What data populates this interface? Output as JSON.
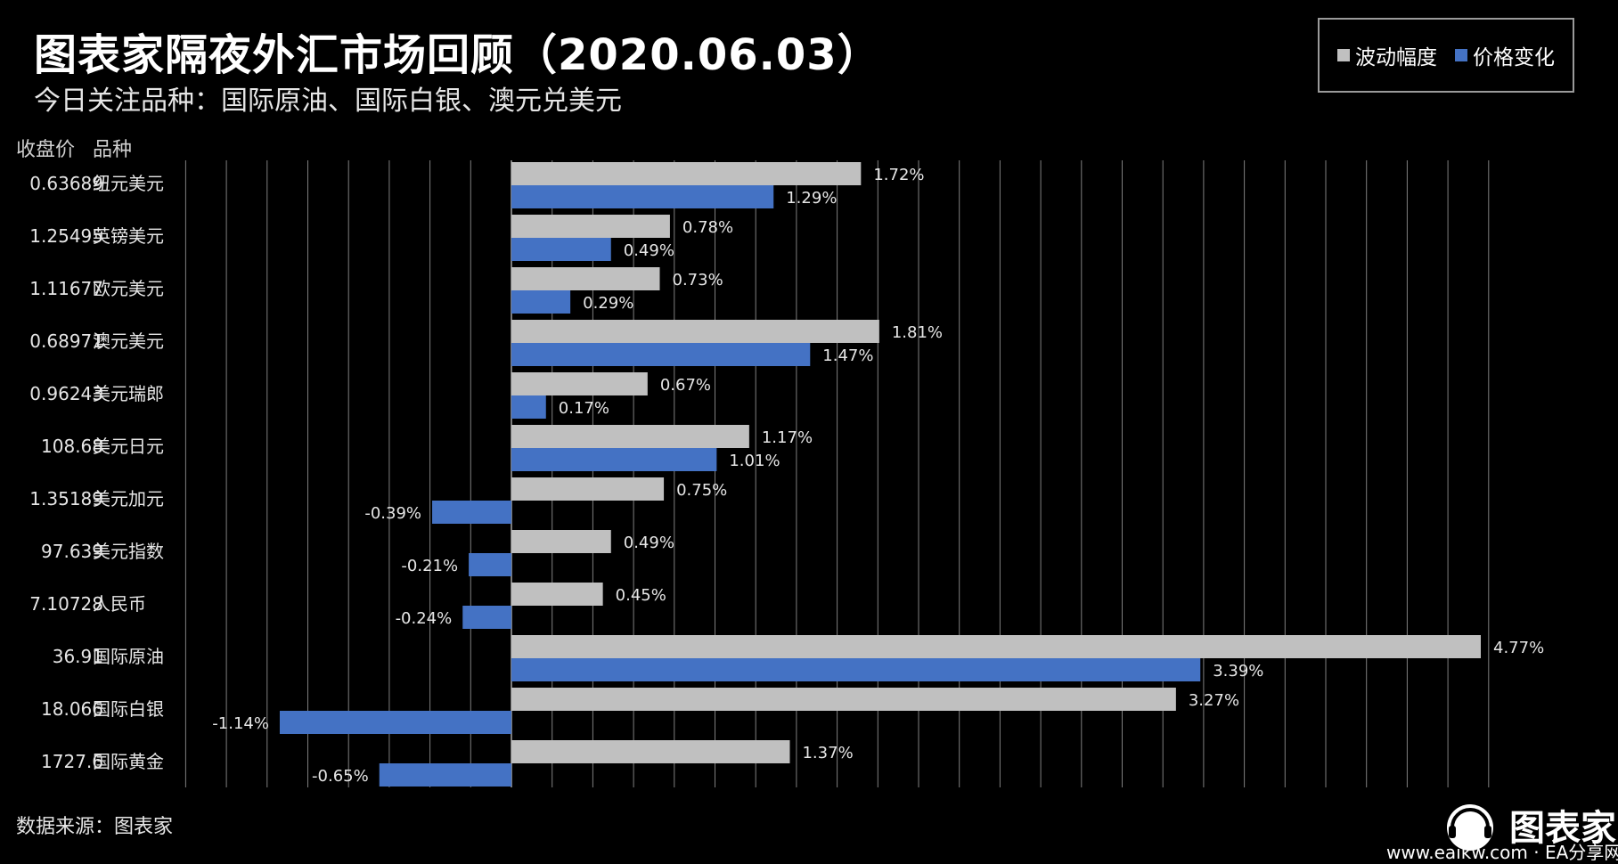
{
  "header": {
    "title": "图表家隔夜外汇市场回顾（2020.06.03）",
    "subtitle": "今日关注品种：国际原油、国际白银、澳元兑美元"
  },
  "legend": {
    "items": [
      {
        "label": "波动幅度",
        "color": "#c0c0c0"
      },
      {
        "label": "价格变化",
        "color": "#4472c4"
      }
    ]
  },
  "columns": {
    "close_label": "收盘价",
    "name_label": "品种"
  },
  "footer": {
    "source": "数据来源：图表家",
    "logo_text": "图表家",
    "watermark": "www.eaikw.com · EA分享网"
  },
  "colors": {
    "background": "#000000",
    "volatility": "#c0c0c0",
    "price_change": "#4472c4",
    "grid": "#7f7f7f"
  },
  "chart_data": {
    "type": "bar",
    "orientation": "horizontal",
    "unit": "%",
    "xlim": [
      -8.0,
      18.0
    ],
    "grid": true,
    "legend_position": "top-right",
    "categories": [
      "纽元美元",
      "英镑美元",
      "欧元美元",
      "澳元美元",
      "美元瑞郎",
      "美元日元",
      "美元加元",
      "美元指数",
      "人民币",
      "国际原油",
      "国际白银",
      "国际黄金"
    ],
    "close_prices": [
      "0.63689",
      "1.25495",
      "1.11677",
      "0.68971",
      "0.96243",
      "108.68",
      "1.35189",
      "97.639",
      "7.10728",
      "36.91",
      "18.066",
      "1727.6"
    ],
    "series": [
      {
        "name": "波动幅度",
        "values": [
          1.72,
          0.78,
          0.73,
          1.81,
          0.67,
          1.17,
          0.75,
          0.49,
          0.45,
          4.77,
          3.27,
          1.37
        ],
        "labels": [
          "1.72%",
          "0.78%",
          "0.73%",
          "1.81%",
          "0.67%",
          "1.17%",
          "0.75%",
          "0.49%",
          "0.45%",
          "4.77%",
          "3.27%",
          "1.37%"
        ]
      },
      {
        "name": "价格变化",
        "values": [
          1.29,
          0.49,
          0.29,
          1.47,
          0.17,
          1.01,
          -0.39,
          -0.21,
          -0.24,
          3.39,
          -1.14,
          -0.65
        ],
        "labels": [
          "1.29%",
          "0.49%",
          "0.29%",
          "1.47%",
          "0.17%",
          "1.01%",
          "-0.39%",
          "-0.21%",
          "-0.24%",
          "3.39%",
          "-1.14%",
          "-0.65%"
        ]
      }
    ]
  }
}
